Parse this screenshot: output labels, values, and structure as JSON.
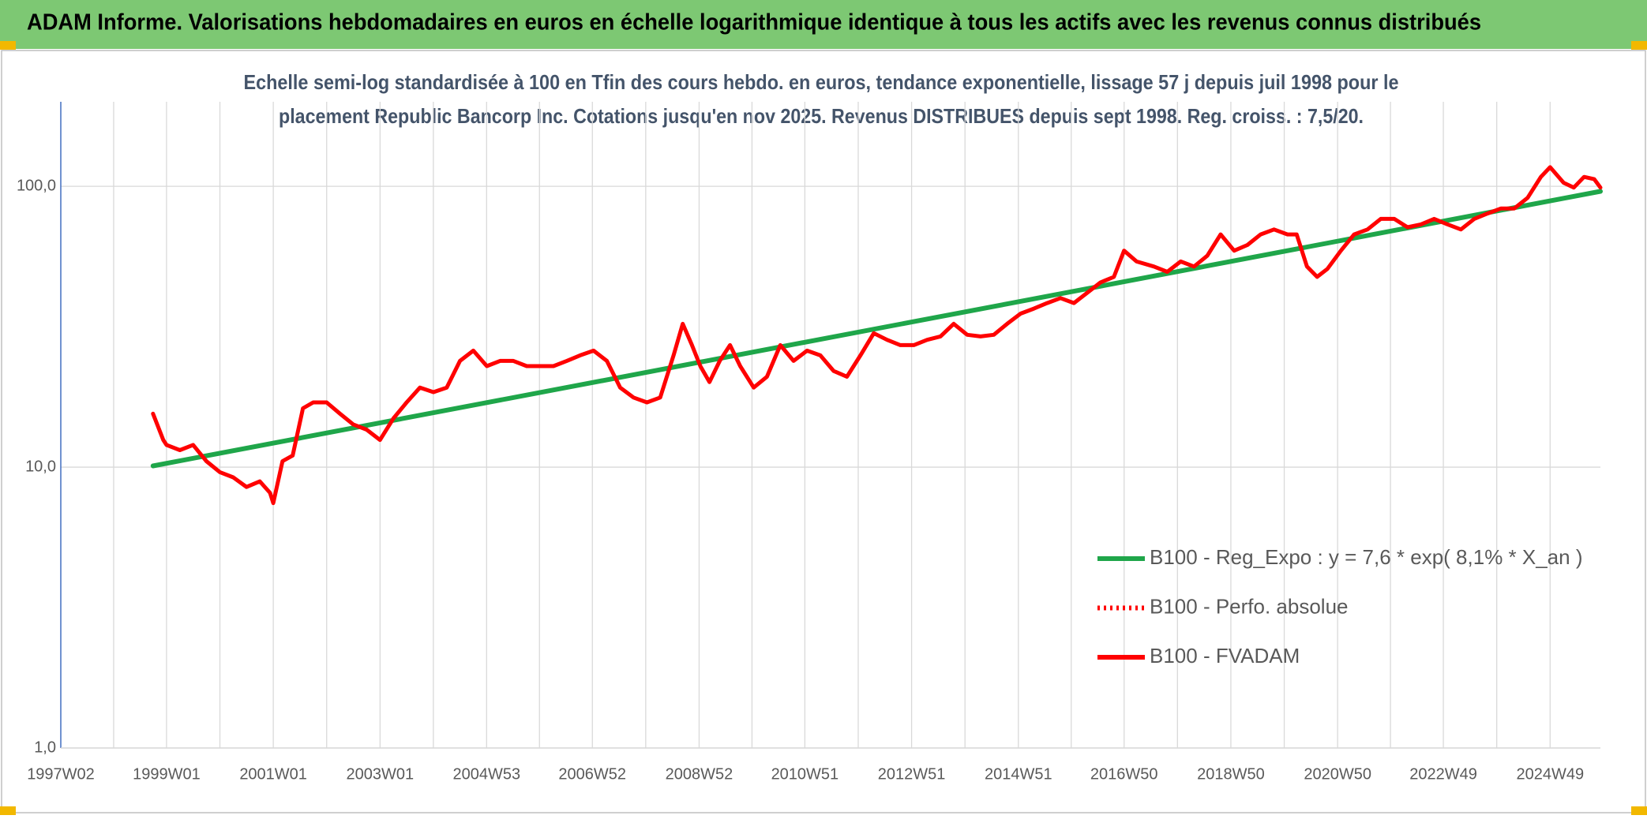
{
  "chart_data": {
    "type": "line",
    "title": "ADAM Informe. Valorisations hebdomadaires en euros en échelle logarithmique identique à tous les actifs avec les revenus connus distribués",
    "subtitle": [
      "Echelle semi-log standardisée à 100 en Tfin des cours hebdo. en euros, tendance exponentielle, lissage 57 j depuis juil 1998 pour le",
      "placement Republic Bancorp Inc. Cotations jusqu'en nov 2025. Revenus DISTRIBUES depuis sept 1998. Reg. croiss. : 7,5/20."
    ],
    "log_scale": true,
    "grid": true,
    "legend": "lower right",
    "xlim": [
      "1997W02",
      "2025W46"
    ],
    "xticks": [
      "1997W02",
      "1999W01",
      "2001W01",
      "2003W01",
      "2004W53",
      "2006W52",
      "2008W52",
      "2010W51",
      "2012W51",
      "2014W51",
      "2016W50",
      "2018W50",
      "2020W50",
      "2022W49",
      "2024W49"
    ],
    "ylim": [
      1,
      200
    ],
    "yticks": [
      {
        "value": 1,
        "label": "1,0"
      },
      {
        "value": 10,
        "label": "10,0"
      },
      {
        "value": 100,
        "label": "100,0"
      }
    ],
    "series": [
      {
        "name": "B100 - Reg_Expo : y = 7,6 * exp( 8,1% *  X_an )",
        "color": "#1fa64a",
        "line_style": "solid",
        "x": [
          "1998W40",
          "2025W46"
        ],
        "values": [
          10.1,
          96
        ]
      },
      {
        "name": "B100 - Perfo. absolue",
        "color": "#ff0000",
        "line_style": "dotted",
        "x": [],
        "values": []
      },
      {
        "name": "B100 - FVADAM",
        "color": "#ff0000",
        "line_style": "solid",
        "x": [
          "1998W40",
          "1998W50",
          "1999W01",
          "1999W14",
          "1999W27",
          "1999W40",
          "2000W01",
          "2000W14",
          "2000W27",
          "2000W40",
          "2000W50",
          "2001W01",
          "2001W10",
          "2001W20",
          "2001W30",
          "2001W40",
          "2002W01",
          "2002W14",
          "2002W27",
          "2002W40",
          "2003W01",
          "2003W14",
          "2003W27",
          "2003W40",
          "2004W01",
          "2004W14",
          "2004W27",
          "2004W40",
          "2005W01",
          "2005W14",
          "2005W27",
          "2005W40",
          "2006W01",
          "2006W14",
          "2006W27",
          "2006W40",
          "2007W01",
          "2007W14",
          "2007W27",
          "2007W40",
          "2008W01",
          "2008W14",
          "2008W27",
          "2008W36",
          "2008W45",
          "2009W01",
          "2009W10",
          "2009W20",
          "2009W30",
          "2009W40",
          "2010W01",
          "2010W14",
          "2010W27",
          "2010W40",
          "2011W01",
          "2011W14",
          "2011W27",
          "2011W40",
          "2012W01",
          "2012W14",
          "2012W27",
          "2012W40",
          "2013W01",
          "2013W14",
          "2013W27",
          "2013W40",
          "2014W01",
          "2014W14",
          "2014W27",
          "2014W40",
          "2015W01",
          "2015W14",
          "2015W27",
          "2015W40",
          "2016W01",
          "2016W14",
          "2016W27",
          "2016W40",
          "2016W50",
          "2017W10",
          "2017W27",
          "2017W40",
          "2018W01",
          "2018W14",
          "2018W27",
          "2018W40",
          "2019W01",
          "2019W14",
          "2019W27",
          "2019W40",
          "2020W01",
          "2020W10",
          "2020W20",
          "2020W30",
          "2020W40",
          "2021W01",
          "2021W14",
          "2021W27",
          "2021W40",
          "2022W01",
          "2022W14",
          "2022W27",
          "2022W40",
          "2023W01",
          "2023W14",
          "2023W27",
          "2023W40",
          "2024W01",
          "2024W14",
          "2024W27",
          "2024W40",
          "2024W49",
          "2025W10",
          "2025W20",
          "2025W30",
          "2025W40",
          "2025W46"
        ],
        "values": [
          15.5,
          12.5,
          12.0,
          11.5,
          12.0,
          10.5,
          9.6,
          9.2,
          8.5,
          8.9,
          8.1,
          7.45,
          10.5,
          11.0,
          16.2,
          17.0,
          17.0,
          15.5,
          14.2,
          13.6,
          12.5,
          14.9,
          17.0,
          19.2,
          18.5,
          19.2,
          23.9,
          26.0,
          22.9,
          23.9,
          23.9,
          22.9,
          22.9,
          22.9,
          23.9,
          25.0,
          26.0,
          23.9,
          19.2,
          17.7,
          17.0,
          17.7,
          25.0,
          32.4,
          27.2,
          22.9,
          20.1,
          23.9,
          27.2,
          22.9,
          19.2,
          21.0,
          27.2,
          23.9,
          26.0,
          25.0,
          22.0,
          21.0,
          25.0,
          30.0,
          28.4,
          27.2,
          27.2,
          28.4,
          29.2,
          32.4,
          29.6,
          29.2,
          29.6,
          32.4,
          35.2,
          36.7,
          38.4,
          40.0,
          38.4,
          41.8,
          45.5,
          47.6,
          59.0,
          54.0,
          51.8,
          49.6,
          54.0,
          51.8,
          56.6,
          67.4,
          59.0,
          61.8,
          67.4,
          70.2,
          67.4,
          67.4,
          51.8,
          47.6,
          50.8,
          59.0,
          67.4,
          70.2,
          76.6,
          76.6,
          71.5,
          73.2,
          76.6,
          73.2,
          70.2,
          76.6,
          80.0,
          83.4,
          83.4,
          91.0,
          108.0,
          117.0,
          103.0,
          99.0,
          108.0,
          106.0,
          99.0
        ]
      }
    ]
  }
}
